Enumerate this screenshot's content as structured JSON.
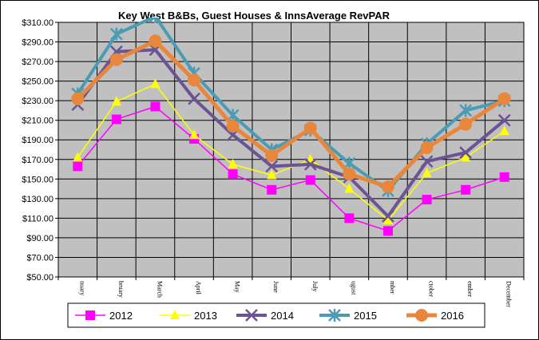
{
  "chart_data": {
    "type": "line",
    "title": "Key West B&Bs, Guest Houses & InnsAverage RevPAR",
    "xlabel": "",
    "ylabel": "",
    "ylim": [
      50,
      310
    ],
    "y_ticks": [
      "$50.00",
      "$70.00",
      "$90.00",
      "$110.00",
      "$130.00",
      "$150.00",
      "$170.00",
      "$190.00",
      "$210.00",
      "$230.00",
      "$250.00",
      "$270.00",
      "$290.00",
      "$310.00"
    ],
    "categories": [
      "January",
      "February",
      "March",
      "April",
      "May",
      "June",
      "July",
      "August",
      "September",
      "October",
      "November",
      "December"
    ],
    "category_labels": [
      "nuary",
      "bruary",
      "March",
      "April",
      "May",
      "June",
      "July",
      "ugust",
      "mber",
      "ctober",
      "ember",
      "December"
    ],
    "grid": true,
    "legend_position": "bottom",
    "series": [
      {
        "name": "2012",
        "color": "#ff00ff",
        "marker": "square",
        "values": [
          163,
          211,
          224,
          191,
          155,
          139,
          149,
          110,
          97,
          129,
          139,
          152
        ]
      },
      {
        "name": "2013",
        "color": "#ffff00",
        "marker": "triangle",
        "values": [
          172,
          229,
          247,
          195,
          165,
          154,
          170,
          140,
          108,
          156,
          172,
          199
        ]
      },
      {
        "name": "2014",
        "color": "#6b5394",
        "marker": "x",
        "values": [
          226,
          280,
          282,
          232,
          195,
          163,
          165,
          152,
          112,
          168,
          177,
          210
        ]
      },
      {
        "name": "2015",
        "color": "#4a9bb3",
        "marker": "asterisk",
        "values": [
          237,
          298,
          316,
          258,
          215,
          180,
          200,
          166,
          138,
          186,
          220,
          230
        ]
      },
      {
        "name": "2016",
        "color": "#e8873c",
        "marker": "circle",
        "values": [
          232,
          272,
          291,
          251,
          204,
          174,
          202,
          155,
          142,
          182,
          206,
          232
        ]
      }
    ]
  }
}
